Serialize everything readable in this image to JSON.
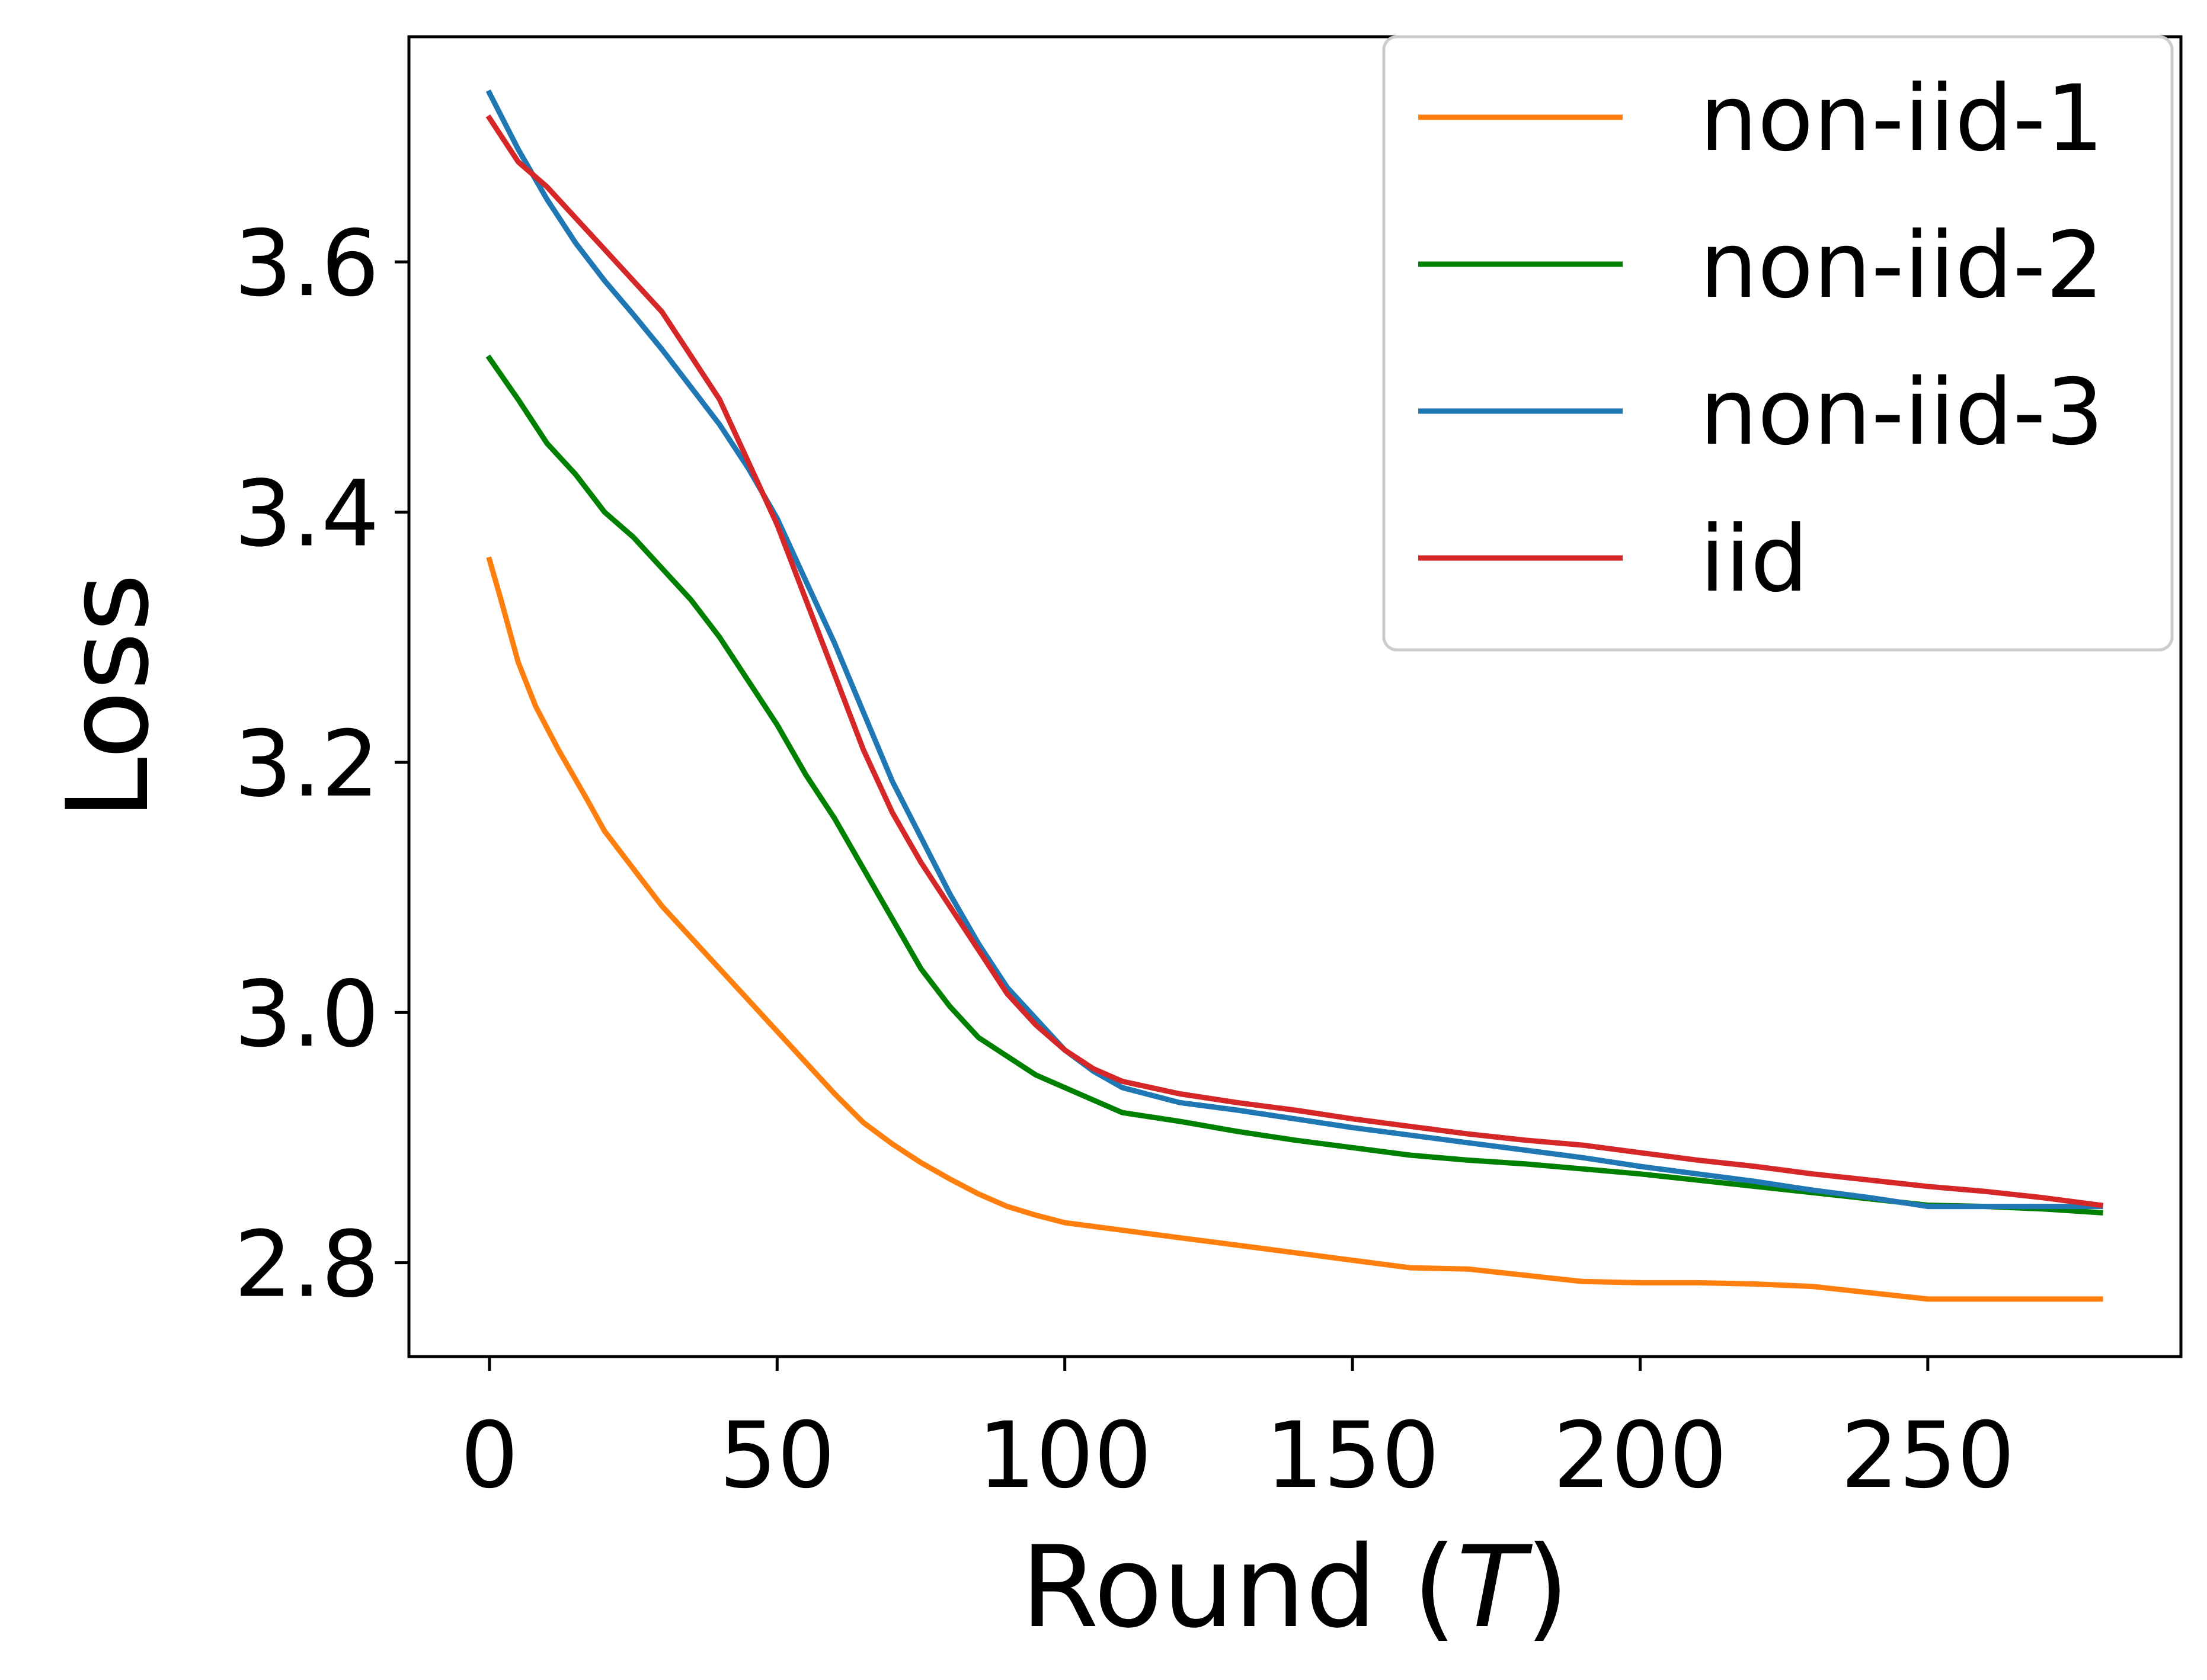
{
  "chart_data": {
    "type": "line",
    "title": "",
    "xlabel": "Round (T)",
    "xlabel_prefix": "Round (",
    "xlabel_var": "T",
    "xlabel_suffix": ")",
    "ylabel": "Loss",
    "xlim": [
      -14,
      294
    ],
    "ylim": [
      2.725,
      3.78
    ],
    "xticks": [
      0,
      50,
      100,
      150,
      200,
      250
    ],
    "xtick_labels": [
      "0",
      "50",
      "100",
      "150",
      "200",
      "250"
    ],
    "yticks": [
      2.8,
      3.0,
      3.2,
      3.4,
      3.6
    ],
    "ytick_labels": [
      "2.8",
      "3.0",
      "3.2",
      "3.4",
      "3.6"
    ],
    "legend_position": "top-right",
    "series": [
      {
        "name": "non-iid-1",
        "color": "#ff7f0e",
        "x": [
          0,
          2,
          5,
          8,
          12,
          17,
          20,
          25,
          30,
          35,
          40,
          45,
          50,
          55,
          60,
          65,
          70,
          75,
          80,
          85,
          90,
          95,
          100,
          110,
          120,
          130,
          140,
          150,
          160,
          170,
          180,
          190,
          200,
          210,
          220,
          230,
          240,
          250,
          260,
          270,
          280
        ],
        "y": [
          3.362,
          3.33,
          3.28,
          3.245,
          3.21,
          3.17,
          3.145,
          3.115,
          3.085,
          3.06,
          3.035,
          3.01,
          2.985,
          2.96,
          2.935,
          2.912,
          2.895,
          2.88,
          2.867,
          2.855,
          2.845,
          2.838,
          2.832,
          2.826,
          2.82,
          2.814,
          2.808,
          2.802,
          2.796,
          2.795,
          2.79,
          2.785,
          2.784,
          2.784,
          2.783,
          2.781,
          2.776,
          2.771,
          2.771,
          2.771,
          2.771
        ]
      },
      {
        "name": "non-iid-2",
        "color": "#008000",
        "x": [
          0,
          5,
          10,
          15,
          20,
          25,
          30,
          35,
          40,
          45,
          50,
          55,
          60,
          65,
          70,
          75,
          80,
          85,
          90,
          95,
          100,
          105,
          110,
          120,
          130,
          140,
          150,
          160,
          170,
          180,
          190,
          200,
          210,
          220,
          230,
          240,
          250,
          260,
          270,
          280
        ],
        "y": [
          3.523,
          3.49,
          3.455,
          3.43,
          3.4,
          3.38,
          3.355,
          3.33,
          3.3,
          3.265,
          3.23,
          3.19,
          3.155,
          3.115,
          3.075,
          3.035,
          3.005,
          2.98,
          2.965,
          2.95,
          2.94,
          2.93,
          2.92,
          2.913,
          2.905,
          2.898,
          2.892,
          2.886,
          2.882,
          2.879,
          2.875,
          2.871,
          2.866,
          2.861,
          2.856,
          2.851,
          2.846,
          2.845,
          2.843,
          2.84
        ]
      },
      {
        "name": "non-iid-3",
        "color": "#1f77b4",
        "x": [
          0,
          5,
          10,
          15,
          20,
          25,
          30,
          35,
          40,
          45,
          50,
          55,
          60,
          65,
          70,
          75,
          80,
          85,
          90,
          95,
          100,
          105,
          110,
          120,
          130,
          140,
          150,
          160,
          170,
          180,
          190,
          200,
          210,
          220,
          230,
          240,
          250,
          260,
          270,
          280
        ],
        "y": [
          3.735,
          3.69,
          3.65,
          3.615,
          3.585,
          3.558,
          3.53,
          3.5,
          3.47,
          3.435,
          3.395,
          3.345,
          3.295,
          3.24,
          3.185,
          3.14,
          3.095,
          3.055,
          3.02,
          2.995,
          2.97,
          2.953,
          2.94,
          2.928,
          2.922,
          2.915,
          2.908,
          2.902,
          2.896,
          2.89,
          2.884,
          2.877,
          2.871,
          2.865,
          2.858,
          2.852,
          2.845,
          2.845,
          2.845,
          2.845
        ]
      },
      {
        "name": "iid",
        "color": "#d62728",
        "x": [
          0,
          5,
          10,
          15,
          20,
          25,
          30,
          35,
          40,
          45,
          50,
          55,
          60,
          65,
          70,
          75,
          80,
          85,
          90,
          95,
          100,
          105,
          110,
          120,
          130,
          140,
          150,
          160,
          170,
          180,
          190,
          200,
          210,
          220,
          230,
          240,
          250,
          260,
          270,
          280
        ],
        "y": [
          3.715,
          3.68,
          3.66,
          3.635,
          3.61,
          3.585,
          3.56,
          3.525,
          3.49,
          3.44,
          3.39,
          3.33,
          3.27,
          3.21,
          3.16,
          3.12,
          3.085,
          3.05,
          3.015,
          2.99,
          2.97,
          2.955,
          2.945,
          2.935,
          2.928,
          2.922,
          2.915,
          2.909,
          2.903,
          2.898,
          2.894,
          2.888,
          2.882,
          2.877,
          2.871,
          2.866,
          2.861,
          2.857,
          2.852,
          2.846
        ]
      }
    ]
  }
}
